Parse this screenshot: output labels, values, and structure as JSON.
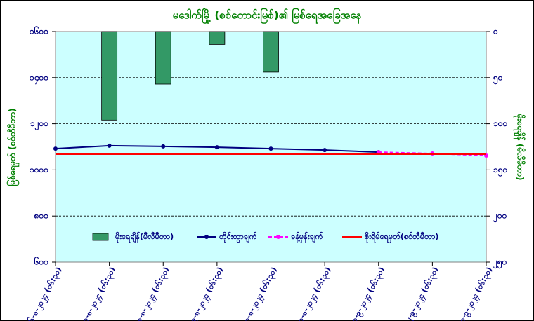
{
  "chart_data": {
    "type": "bar-line",
    "title": "မဒေါက်မြို့ (စစ်တောင်းမြစ်)၏ မြစ်ရေအခြေအနေ",
    "ylabel": "မြစ်ရေမှတ် (စင်တီမီတာ)",
    "y2label": "မိုးရေချိန် (မီလီမီတာ)",
    "categories": [
      "၂၆-၈-၂၀၂၄ (၀၆:၃၀)",
      "၂၇-၈-၂၀၂၄ (၀၆:၃၀)",
      "၂၈-၈-၂၀၂၄ (၀၆:၃၀)",
      "၂၉-၈-၂၀၂၄ (၀၆:၃၀)",
      "၃၀-၈-၂၀၂၄ (၀၆:၃၀)",
      "၃၁-၈-၂၀၂၄ (၀၆:၃၀)",
      "၁-၉-၂၀၂၄ (၀၆:၃၀)",
      "၂-၉-၂၀၂၄ (၀၆:၃၀)",
      "၃-၉-၂၀၂၄ (၀၆:၃၀)"
    ],
    "series": [
      {
        "name": "မိုးရေချိန်(မီလီမီတာ)",
        "kind": "bar",
        "axis": "y2",
        "color": "#339966",
        "values": [
          0,
          96,
          57,
          14,
          44,
          0,
          0,
          0,
          0
        ]
      },
      {
        "name": "တိုင်းထွာချက်",
        "kind": "line",
        "color": "#000080",
        "values": [
          1092,
          1105,
          1102,
          1098,
          1092,
          1086,
          1077,
          null,
          null
        ]
      },
      {
        "name": "ခန့်မှန်းချက်",
        "kind": "dashed",
        "color": "#ff00ff",
        "values": [
          null,
          null,
          null,
          null,
          null,
          null,
          1077,
          1071,
          1062
        ]
      },
      {
        "name": "စိုးရိမ်ရေမှတ်(စင်တီမီတာ)",
        "kind": "level",
        "color": "#ff0000",
        "values": [
          1068,
          1068,
          1068,
          1068,
          1068,
          1068,
          1068,
          1068,
          1068
        ]
      }
    ],
    "ylim": [
      600,
      1600
    ],
    "yticks": [
      {
        "value": 600,
        "label": "၆၀၀"
      },
      {
        "value": 800,
        "label": "၈၀၀"
      },
      {
        "value": 1000,
        "label": "၁၀၀၀"
      },
      {
        "value": 1200,
        "label": "၁၂၀၀"
      },
      {
        "value": 1400,
        "label": "၁၄၀၀"
      },
      {
        "value": 1600,
        "label": "၁၆၀၀"
      }
    ],
    "y2lim": [
      250,
      0
    ],
    "y2ticks": [
      {
        "value": 0,
        "label": "၀"
      },
      {
        "value": 50,
        "label": "၅၀"
      },
      {
        "value": 100,
        "label": "၁၀၀"
      },
      {
        "value": 150,
        "label": "၁၅၀"
      },
      {
        "value": 200,
        "label": "၂၀၀"
      },
      {
        "value": 250,
        "label": "၂၅၀"
      }
    ],
    "grid": true
  }
}
